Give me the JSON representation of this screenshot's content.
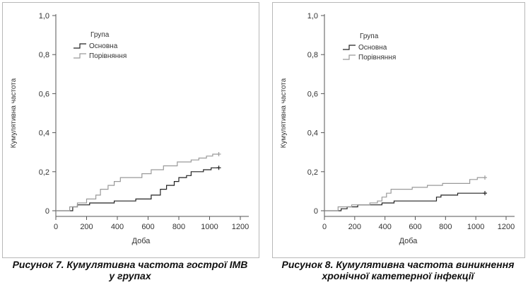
{
  "chart_data": [
    {
      "type": "line",
      "step": true,
      "caption": [
        "Рисунок 7. Кумулятивна частота гострої ІМВ",
        "у групах"
      ],
      "xlabel": "Доба",
      "ylabel": "Кумулятивна частота",
      "xlim": [
        0,
        1200
      ],
      "ylim": [
        0,
        1.0
      ],
      "xticks": [
        "0",
        "200",
        "400",
        "600",
        "800",
        "1000",
        "1200"
      ],
      "yticks": [
        "0",
        "0,2",
        "0,4",
        "0,6",
        "0,8",
        "1,0"
      ],
      "grid": false,
      "legend": {
        "title": "Група",
        "placement": "top-left"
      },
      "series": [
        {
          "name": "Основна",
          "color": "#222222",
          "points": [
            [
              0,
              0
            ],
            [
              110,
              0
            ],
            [
              110,
              0.02
            ],
            [
              140,
              0.02
            ],
            [
              140,
              0.03
            ],
            [
              220,
              0.03
            ],
            [
              220,
              0.04
            ],
            [
              380,
              0.04
            ],
            [
              380,
              0.05
            ],
            [
              520,
              0.05
            ],
            [
              520,
              0.06
            ],
            [
              620,
              0.06
            ],
            [
              620,
              0.08
            ],
            [
              680,
              0.08
            ],
            [
              680,
              0.11
            ],
            [
              720,
              0.11
            ],
            [
              720,
              0.13
            ],
            [
              770,
              0.13
            ],
            [
              770,
              0.15
            ],
            [
              800,
              0.15
            ],
            [
              800,
              0.17
            ],
            [
              850,
              0.17
            ],
            [
              850,
              0.18
            ],
            [
              880,
              0.18
            ],
            [
              880,
              0.2
            ],
            [
              960,
              0.2
            ],
            [
              960,
              0.21
            ],
            [
              1010,
              0.21
            ],
            [
              1010,
              0.22
            ],
            [
              1060,
              0.22
            ]
          ],
          "censor": [
            [
              1060,
              0.22
            ]
          ]
        },
        {
          "name": "Порівняння",
          "color": "#9a9a9a",
          "points": [
            [
              0,
              0
            ],
            [
              90,
              0
            ],
            [
              90,
              0.02
            ],
            [
              140,
              0.02
            ],
            [
              140,
              0.04
            ],
            [
              200,
              0.04
            ],
            [
              200,
              0.06
            ],
            [
              260,
              0.06
            ],
            [
              260,
              0.08
            ],
            [
              290,
              0.08
            ],
            [
              290,
              0.11
            ],
            [
              340,
              0.11
            ],
            [
              340,
              0.13
            ],
            [
              380,
              0.13
            ],
            [
              380,
              0.15
            ],
            [
              420,
              0.15
            ],
            [
              420,
              0.17
            ],
            [
              560,
              0.17
            ],
            [
              560,
              0.19
            ],
            [
              620,
              0.19
            ],
            [
              620,
              0.21
            ],
            [
              700,
              0.21
            ],
            [
              700,
              0.23
            ],
            [
              790,
              0.23
            ],
            [
              790,
              0.25
            ],
            [
              880,
              0.25
            ],
            [
              880,
              0.26
            ],
            [
              930,
              0.26
            ],
            [
              930,
              0.27
            ],
            [
              980,
              0.27
            ],
            [
              980,
              0.28
            ],
            [
              1020,
              0.28
            ],
            [
              1020,
              0.29
            ],
            [
              1060,
              0.29
            ]
          ],
          "censor": [
            [
              1060,
              0.29
            ]
          ]
        }
      ]
    },
    {
      "type": "line",
      "step": true,
      "caption": [
        "Рисунок 8. Кумулятивна частота виникнення",
        "хронічної катетерної інфекції"
      ],
      "xlabel": "Доба",
      "ylabel": "Кумулятивна частота",
      "xlim": [
        0,
        1200
      ],
      "ylim": [
        0,
        1.0
      ],
      "xticks": [
        "0",
        "200",
        "400",
        "600",
        "800",
        "1000",
        "1200"
      ],
      "yticks": [
        "0",
        "0,2",
        "0,4",
        "0,6",
        "0,8",
        "1,0"
      ],
      "grid": false,
      "legend": {
        "title": "Група",
        "placement": "top-left"
      },
      "series": [
        {
          "name": "Основна",
          "color": "#222222",
          "points": [
            [
              0,
              0
            ],
            [
              110,
              0
            ],
            [
              110,
              0.01
            ],
            [
              150,
              0.01
            ],
            [
              150,
              0.02
            ],
            [
              220,
              0.02
            ],
            [
              220,
              0.03
            ],
            [
              380,
              0.03
            ],
            [
              380,
              0.04
            ],
            [
              460,
              0.04
            ],
            [
              460,
              0.05
            ],
            [
              740,
              0.05
            ],
            [
              740,
              0.07
            ],
            [
              770,
              0.07
            ],
            [
              770,
              0.08
            ],
            [
              880,
              0.08
            ],
            [
              880,
              0.09
            ],
            [
              1060,
              0.09
            ]
          ],
          "censor": [
            [
              1060,
              0.09
            ]
          ]
        },
        {
          "name": "Порівняння",
          "color": "#9a9a9a",
          "points": [
            [
              0,
              0
            ],
            [
              90,
              0
            ],
            [
              90,
              0.02
            ],
            [
              180,
              0.02
            ],
            [
              180,
              0.03
            ],
            [
              300,
              0.03
            ],
            [
              300,
              0.04
            ],
            [
              350,
              0.04
            ],
            [
              350,
              0.05
            ],
            [
              380,
              0.05
            ],
            [
              380,
              0.07
            ],
            [
              410,
              0.07
            ],
            [
              410,
              0.09
            ],
            [
              440,
              0.09
            ],
            [
              440,
              0.11
            ],
            [
              580,
              0.11
            ],
            [
              580,
              0.12
            ],
            [
              680,
              0.12
            ],
            [
              680,
              0.13
            ],
            [
              780,
              0.13
            ],
            [
              780,
              0.14
            ],
            [
              960,
              0.14
            ],
            [
              960,
              0.16
            ],
            [
              1010,
              0.16
            ],
            [
              1010,
              0.17
            ],
            [
              1060,
              0.17
            ]
          ],
          "censor": [
            [
              1060,
              0.17
            ]
          ]
        }
      ]
    }
  ]
}
